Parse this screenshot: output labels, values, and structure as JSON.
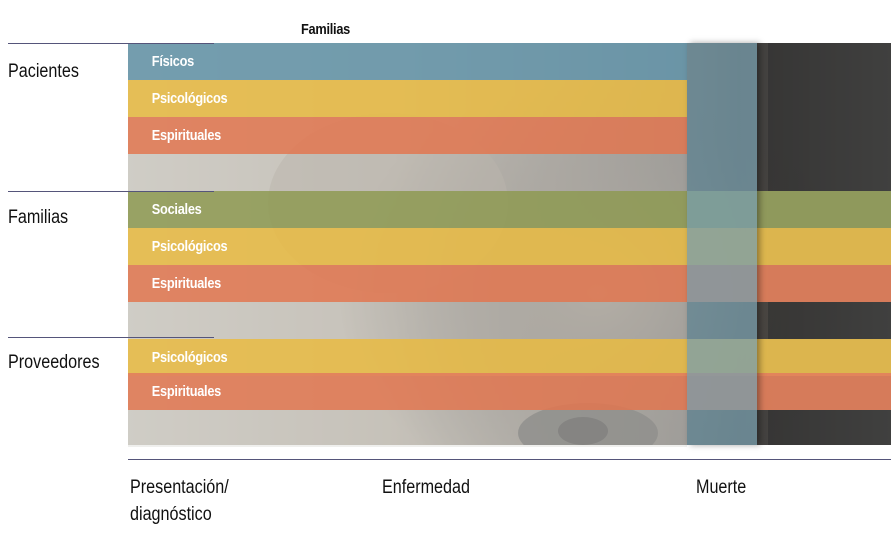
{
  "header": {
    "label": "Familias"
  },
  "groups": [
    {
      "label": "Pacientes",
      "bands": [
        "Físicos",
        "Psicológicos",
        "Espirituales"
      ]
    },
    {
      "label": "Familias",
      "bands": [
        "Sociales",
        "Psicológicos",
        "Espirituales"
      ]
    },
    {
      "label": "Proveedores",
      "bands": [
        "Psicológicos",
        "Espirituales"
      ]
    }
  ],
  "timeline": {
    "start_line1": "Presentación/",
    "start_line2": "diagnóstico",
    "middle": "Enfermedad",
    "end": "Muerte"
  },
  "colors": {
    "fisicos": "#6e9baf",
    "psicologicos": "#e8be50",
    "espirituales": "#e2805c",
    "sociales": "#96a05f",
    "muerte_column": "#789eac"
  }
}
